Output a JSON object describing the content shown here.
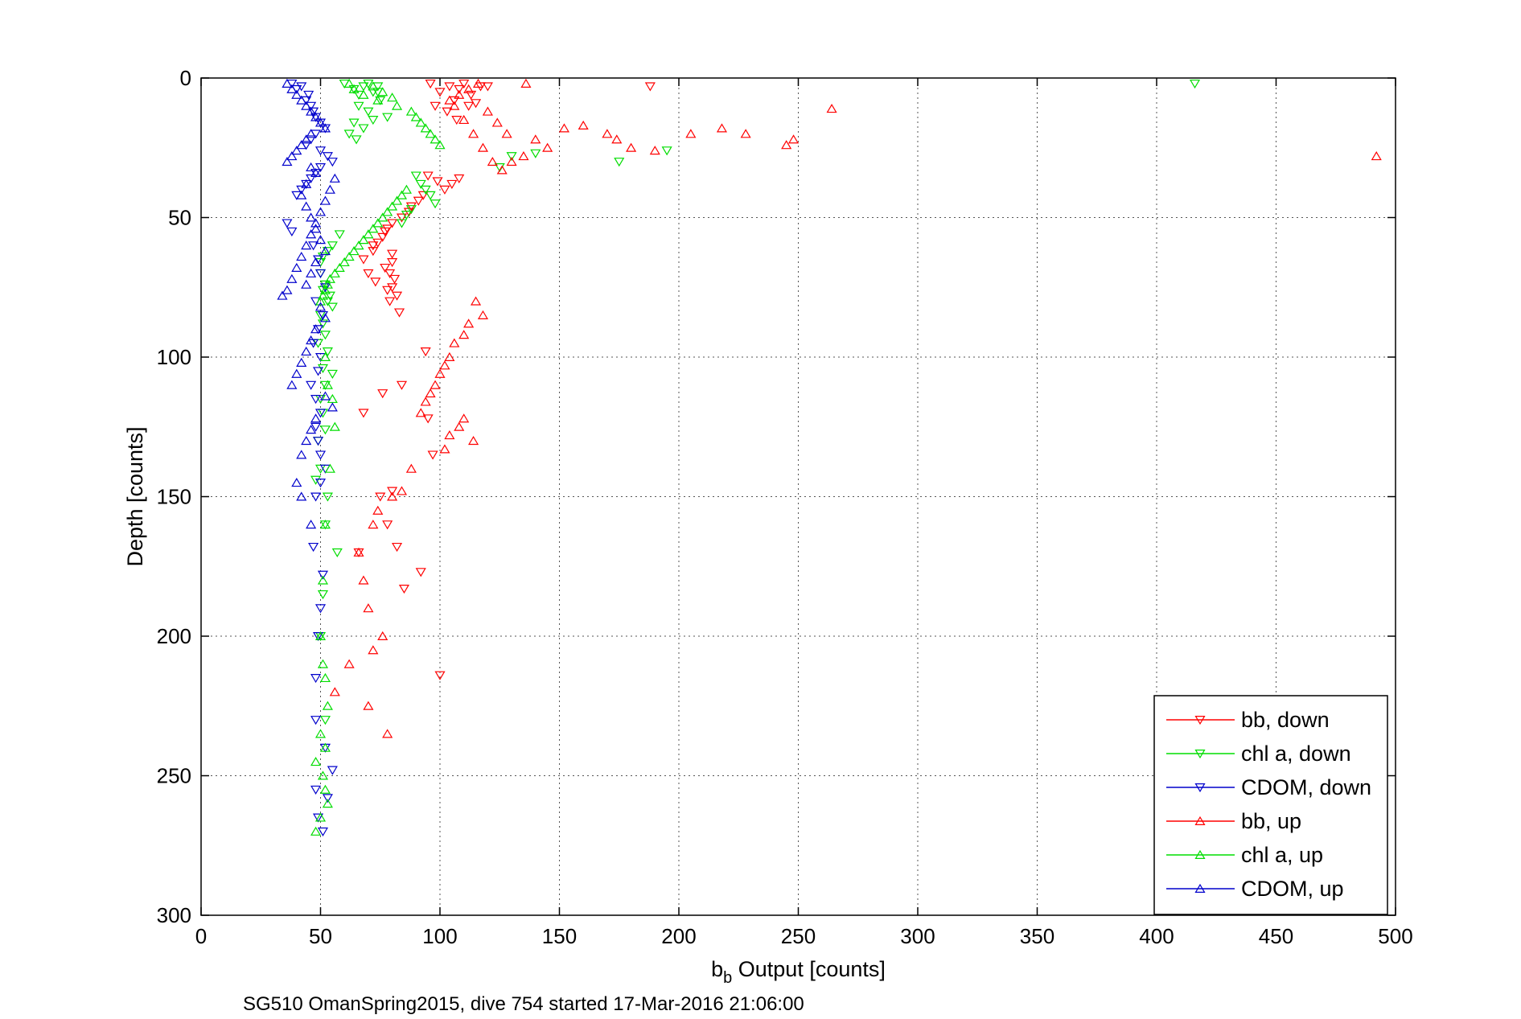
{
  "chart_data": {
    "type": "scatter",
    "title": "",
    "xlabel_main": "b",
    "xlabel_sub": "b",
    "xlabel_rest": " Output [counts]",
    "ylabel": "Depth [counts]",
    "caption": "SG510 OmanSpring2015, dive 754 started 17-Mar-2016 21:06:00",
    "xlim": [
      0,
      500
    ],
    "ylim": [
      0,
      300
    ],
    "y_reversed": true,
    "xticks": [
      "0",
      "50",
      "100",
      "150",
      "200",
      "250",
      "300",
      "350",
      "400",
      "450",
      "500"
    ],
    "yticks": [
      "0",
      "50",
      "100",
      "150",
      "200",
      "250",
      "300"
    ],
    "grid": true,
    "legend_position": "bottom-right",
    "series": [
      {
        "name": "bb, down",
        "color": "#ff0000",
        "marker": "triangle-down",
        "x": [
          96,
          100,
          104,
          106,
          108,
          110,
          113,
          115,
          117,
          120,
          103,
          98,
          107,
          112,
          188,
          95,
          99,
          102,
          105,
          108,
          93,
          91,
          88,
          87,
          84,
          80,
          78,
          77,
          76,
          74,
          72,
          80,
          80,
          77,
          79,
          81,
          80,
          82,
          79,
          78,
          73,
          70,
          68,
          72,
          83,
          94,
          84,
          76,
          68,
          75,
          80,
          97,
          82,
          78,
          66,
          85,
          100,
          92,
          95
        ],
        "y": [
          2,
          5,
          3,
          8,
          4,
          2,
          6,
          9,
          3,
          3,
          12,
          10,
          15,
          10,
          3,
          35,
          37,
          40,
          38,
          36,
          42,
          44,
          46,
          48,
          50,
          52,
          54,
          55,
          57,
          59,
          62,
          63,
          66,
          68,
          70,
          72,
          75,
          78,
          80,
          76,
          73,
          70,
          65,
          60,
          84,
          98,
          110,
          113,
          120,
          150,
          148,
          135,
          168,
          160,
          170,
          183,
          214,
          177,
          122
        ]
      },
      {
        "name": "chl a, down",
        "color": "#00dd00",
        "marker": "triangle-down",
        "x": [
          60,
          64,
          66,
          68,
          70,
          72,
          74,
          66,
          70,
          75,
          78,
          64,
          68,
          72,
          74,
          62,
          65,
          58,
          55,
          53,
          51,
          50,
          50,
          52,
          51,
          54,
          53,
          55,
          50,
          51,
          52,
          49,
          53,
          51,
          55,
          52,
          50,
          51,
          52,
          49,
          50,
          48,
          53,
          52,
          57,
          51,
          50,
          52,
          416,
          130,
          125,
          140,
          195,
          175,
          90,
          92,
          94,
          96,
          98,
          88,
          86,
          84
        ],
        "y": [
          2,
          4,
          6,
          3,
          2,
          5,
          3,
          10,
          12,
          8,
          14,
          16,
          18,
          15,
          5,
          20,
          22,
          56,
          60,
          62,
          64,
          66,
          70,
          74,
          76,
          78,
          80,
          82,
          85,
          88,
          92,
          95,
          98,
          104,
          106,
          110,
          115,
          120,
          126,
          130,
          140,
          144,
          150,
          160,
          170,
          185,
          200,
          230,
          2,
          28,
          32,
          27,
          26,
          30,
          35,
          38,
          40,
          42,
          45,
          47,
          49,
          52
        ]
      },
      {
        "name": "CDOM, down",
        "color": "#0000cc",
        "marker": "triangle-down",
        "x": [
          38,
          40,
          42,
          45,
          44,
          46,
          47,
          48,
          50,
          52,
          48,
          46,
          44,
          50,
          53,
          55,
          50,
          48,
          46,
          44,
          42,
          40,
          36,
          38,
          47,
          49,
          50,
          52,
          48,
          51,
          49,
          47,
          50,
          49,
          46,
          48,
          50,
          48,
          49,
          50,
          52,
          50,
          48,
          47,
          51,
          50,
          49,
          48,
          48,
          52,
          55,
          53,
          49,
          51,
          48
        ],
        "y": [
          2,
          4,
          3,
          6,
          8,
          10,
          12,
          14,
          16,
          18,
          20,
          22,
          24,
          26,
          28,
          30,
          32,
          34,
          36,
          38,
          40,
          42,
          52,
          55,
          60,
          65,
          70,
          75,
          80,
          85,
          90,
          95,
          100,
          105,
          110,
          115,
          120,
          125,
          130,
          135,
          140,
          145,
          150,
          168,
          178,
          190,
          200,
          215,
          230,
          240,
          248,
          258,
          265,
          270,
          255
        ]
      },
      {
        "name": "bb, up",
        "color": "#ff0000",
        "marker": "triangle-up",
        "x": [
          492,
          264,
          248,
          245,
          228,
          218,
          205,
          190,
          180,
          174,
          170,
          160,
          152,
          145,
          140,
          135,
          130,
          126,
          122,
          118,
          114,
          110,
          106,
          104,
          108,
          112,
          116,
          120,
          124,
          128,
          136,
          115,
          118,
          112,
          110,
          106,
          104,
          102,
          100,
          98,
          96,
          94,
          92,
          110,
          108,
          104,
          114,
          102,
          88,
          84,
          80,
          74,
          72,
          66,
          68,
          70,
          76,
          72,
          62,
          56,
          70,
          78
        ],
        "y": [
          28,
          11,
          22,
          24,
          20,
          18,
          20,
          26,
          25,
          22,
          20,
          17,
          18,
          25,
          22,
          28,
          30,
          33,
          30,
          25,
          20,
          15,
          10,
          8,
          6,
          4,
          2,
          12,
          16,
          20,
          2,
          80,
          85,
          88,
          92,
          95,
          100,
          103,
          106,
          110,
          113,
          116,
          120,
          122,
          125,
          128,
          130,
          133,
          140,
          148,
          150,
          155,
          160,
          170,
          180,
          190,
          200,
          205,
          210,
          220,
          225,
          235
        ]
      },
      {
        "name": "chl a, up",
        "color": "#00dd00",
        "marker": "triangle-up",
        "x": [
          62,
          64,
          68,
          72,
          74,
          76,
          80,
          82,
          88,
          90,
          92,
          94,
          96,
          98,
          100,
          86,
          84,
          82,
          80,
          78,
          76,
          74,
          72,
          70,
          68,
          66,
          64,
          62,
          60,
          58,
          56,
          54,
          53,
          52,
          51,
          50,
          52,
          53,
          55,
          56,
          54,
          52,
          51,
          50,
          51,
          52,
          53,
          50,
          52,
          48,
          51,
          52,
          53,
          50,
          48
        ],
        "y": [
          2,
          4,
          6,
          3,
          8,
          5,
          7,
          10,
          12,
          14,
          16,
          18,
          20,
          22,
          24,
          40,
          42,
          44,
          46,
          48,
          50,
          52,
          54,
          56,
          58,
          60,
          62,
          64,
          66,
          68,
          70,
          72,
          74,
          76,
          78,
          80,
          100,
          110,
          115,
          125,
          140,
          160,
          180,
          200,
          210,
          215,
          225,
          235,
          240,
          245,
          250,
          255,
          260,
          265,
          270
        ]
      },
      {
        "name": "CDOM, up",
        "color": "#0000cc",
        "marker": "triangle-up",
        "x": [
          36,
          38,
          40,
          42,
          44,
          46,
          48,
          50,
          52,
          46,
          44,
          42,
          40,
          38,
          36,
          34,
          36,
          38,
          40,
          42,
          44,
          46,
          48,
          50,
          52,
          54,
          56,
          48,
          46,
          44,
          42,
          44,
          46,
          48,
          50,
          52,
          48,
          46,
          44,
          50,
          52,
          48,
          46,
          44,
          42,
          40,
          38,
          52,
          55,
          48,
          46,
          44,
          42,
          40,
          42,
          46
        ],
        "y": [
          2,
          4,
          6,
          8,
          10,
          12,
          14,
          16,
          18,
          20,
          22,
          24,
          26,
          28,
          30,
          78,
          76,
          72,
          68,
          64,
          60,
          56,
          52,
          48,
          44,
          40,
          36,
          34,
          32,
          38,
          42,
          46,
          50,
          54,
          58,
          62,
          66,
          70,
          74,
          82,
          86,
          90,
          94,
          98,
          102,
          106,
          110,
          114,
          118,
          122,
          126,
          130,
          135,
          145,
          150,
          160
        ]
      }
    ]
  }
}
